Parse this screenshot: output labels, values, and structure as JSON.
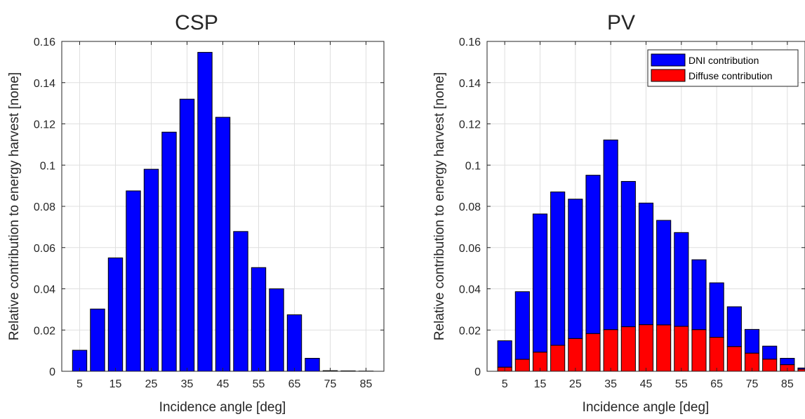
{
  "chart_data": [
    {
      "type": "bar",
      "title": "CSP",
      "xlabel": "Incidence angle [deg]",
      "ylabel": "Relative contribution to energy harvest [none]",
      "xlim": [
        0,
        90
      ],
      "ylim": [
        0,
        0.16
      ],
      "x": [
        5,
        10,
        15,
        20,
        25,
        30,
        35,
        40,
        45,
        50,
        55,
        60,
        65,
        70,
        75,
        80,
        85,
        90
      ],
      "series": [
        {
          "values": [
            0.0102,
            0.0302,
            0.055,
            0.0875,
            0.098,
            0.116,
            0.132,
            0.1547,
            0.1232,
            0.0678,
            0.0503,
            0.04,
            0.0274,
            0.0063,
            0.0003,
            0.0002,
            0.0001,
            0.0
          ],
          "color": "#0000ff"
        }
      ],
      "xticks": [
        5,
        15,
        25,
        35,
        45,
        55,
        65,
        75,
        85
      ],
      "yticks": [
        "0",
        "0.02",
        "0.04",
        "0.06",
        "0.08",
        "0.1",
        "0.12",
        "0.14",
        "0.16"
      ],
      "grid": true,
      "legend": null
    },
    {
      "type": "bar",
      "stacked": true,
      "title": "PV",
      "xlabel": "Incidence angle [deg]",
      "ylabel": "Relative contribution to energy harvest [none]",
      "xlim": [
        0,
        90
      ],
      "ylim": [
        0,
        0.16
      ],
      "x": [
        5,
        10,
        15,
        20,
        25,
        30,
        35,
        40,
        45,
        50,
        55,
        60,
        65,
        70,
        75,
        80,
        85,
        90
      ],
      "series": [
        {
          "name": "DNI contribution",
          "values": [
            0.0128,
            0.0328,
            0.067,
            0.0744,
            0.0676,
            0.0768,
            0.092,
            0.0705,
            0.059,
            0.0507,
            0.0455,
            0.0339,
            0.0264,
            0.0193,
            0.0115,
            0.0063,
            0.0031,
            0.0006
          ],
          "color": "#0000ff"
        },
        {
          "name": "Diffuse contribution",
          "values": [
            0.002,
            0.0058,
            0.0093,
            0.0126,
            0.0159,
            0.0183,
            0.0202,
            0.0216,
            0.0226,
            0.0225,
            0.0218,
            0.0202,
            0.0165,
            0.012,
            0.0088,
            0.0059,
            0.0032,
            0.001
          ],
          "color": "#ff0000"
        }
      ],
      "xticks": [
        5,
        15,
        25,
        35,
        45,
        55,
        65,
        75,
        85
      ],
      "yticks": [
        "0",
        "0.02",
        "0.04",
        "0.06",
        "0.08",
        "0.1",
        "0.12",
        "0.14",
        "0.16"
      ],
      "grid": true,
      "legend": "top-right"
    }
  ]
}
